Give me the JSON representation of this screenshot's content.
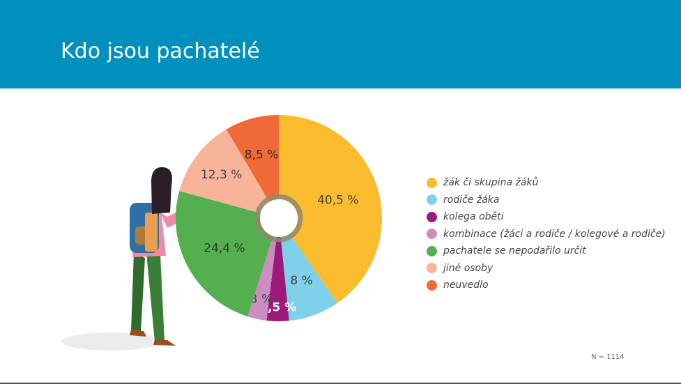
{
  "title": "Kdo jsou pachatelé",
  "note": "N = 1114",
  "colors": {
    "header": "#0090bd"
  },
  "chart_data": {
    "type": "pie",
    "categories": [
      "žák či skupina žáků",
      "rodiče žáka",
      "kolega oběti",
      "kombinace (žáci a rodiče / kolegové a rodiče)",
      "pachatele se nepodařilo určit",
      "jiné osoby",
      "neuvedlo"
    ],
    "values": [
      40.5,
      8,
      3.5,
      3,
      24.4,
      12.3,
      8.5
    ],
    "labels": [
      "40,5 %",
      "8 %",
      "3,5 %",
      "3 %",
      "24,4 %",
      "12,3 %",
      "8,5 %"
    ],
    "colors": [
      "#fbbb2f",
      "#7fd0ea",
      "#9c1a7c",
      "#cd8cc2",
      "#54b04e",
      "#f8b49a",
      "#ef6a36"
    ],
    "legend_position": "right"
  }
}
